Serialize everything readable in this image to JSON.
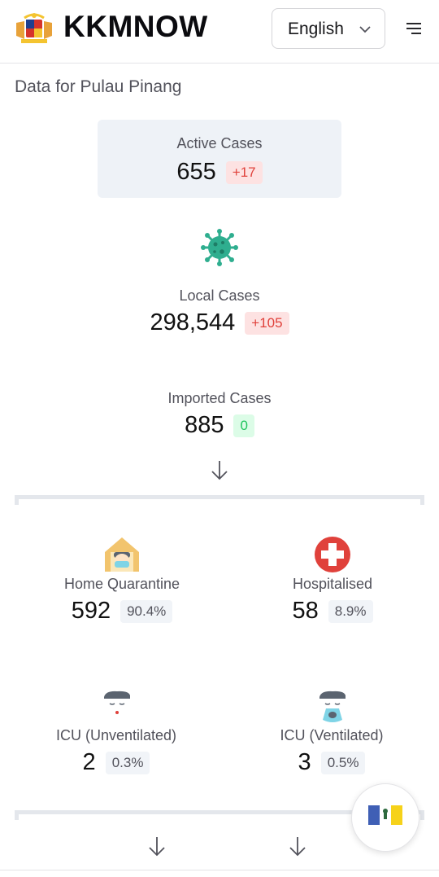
{
  "header": {
    "brand": "KKMNOW",
    "language": "English",
    "icons": {
      "logo": "malaysia-coat-of-arms",
      "chevron": "chevron-down-icon",
      "menu": "menu-icon"
    }
  },
  "subtitle": "Data for Pulau Pinang",
  "active": {
    "label": "Active Cases",
    "value": "655",
    "change": "+17"
  },
  "local": {
    "label": "Local Cases",
    "value": "298,544",
    "change": "+105",
    "icon": "virus-icon"
  },
  "imported": {
    "label": "Imported Cases",
    "value": "885",
    "change": "0"
  },
  "home_quarantine": {
    "label": "Home Quarantine",
    "value": "592",
    "percent": "90.4%",
    "icon": "home-quarantine-icon"
  },
  "hospitalised": {
    "label": "Hospitalised",
    "value": "58",
    "percent": "8.9%",
    "icon": "hospital-cross-icon"
  },
  "icu_unventilated": {
    "label": "ICU (Unventilated)",
    "value": "2",
    "percent": "0.3%",
    "icon": "icu-patient-icon"
  },
  "icu_ventilated": {
    "label": "ICU (Ventilated)",
    "value": "3",
    "percent": "0.5%",
    "icon": "ventilator-patient-icon"
  },
  "colors": {
    "increase": "#e0413b",
    "neutral": "#22c55e",
    "virus": "#2fae8f",
    "hospital": "#e0413b",
    "house": "#f2c46d"
  },
  "fab": {
    "icon": "penang-flag-icon"
  }
}
